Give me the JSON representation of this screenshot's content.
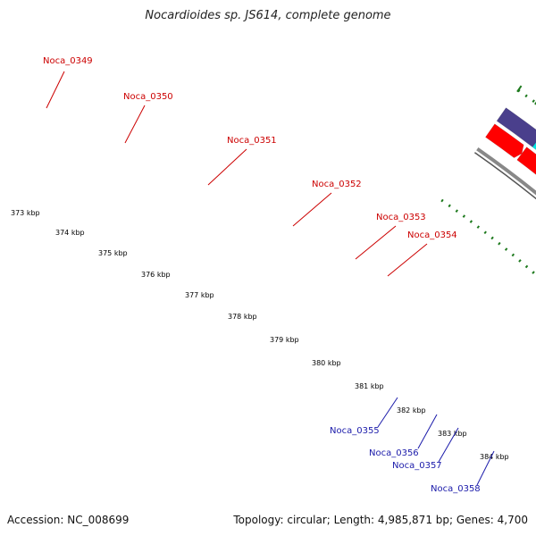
{
  "title": "Nocardioides sp. JS614, complete genome",
  "footer": {
    "accession": "Accession: NC_008699",
    "info": "Topology: circular; Length: 4,985,871 bp; Genes: 4,700"
  },
  "colors": {
    "forward_cds": "#ff0000",
    "reverse_cds": "#0000ee",
    "rrna_like": "#00e6e6",
    "trna_like": "#44c944",
    "orange_feature": "#ff9a00",
    "pseudo_like": "#cccccc",
    "other_feature": "#4a3f8c",
    "label_forward": "#cc0000",
    "label_reverse": "#1a1aaa",
    "backbone": "#888888",
    "tick": "#1e7a1e"
  },
  "ticks": [
    "373 kbp",
    "374 kbp",
    "375 kbp",
    "376 kbp",
    "377 kbp",
    "378 kbp",
    "379 kbp",
    "380 kbp",
    "381 kbp",
    "382 kbp",
    "383 kbp",
    "384 kbp"
  ],
  "labels_top": [
    "Noca_0349",
    "Noca_0350",
    "Noca_0351",
    "Noca_0352",
    "Noca_0353",
    "Noca_0354"
  ],
  "labels_bottom": [
    "Noca_0355",
    "Noca_0356",
    "Noca_0357",
    "Noca_0358"
  ]
}
